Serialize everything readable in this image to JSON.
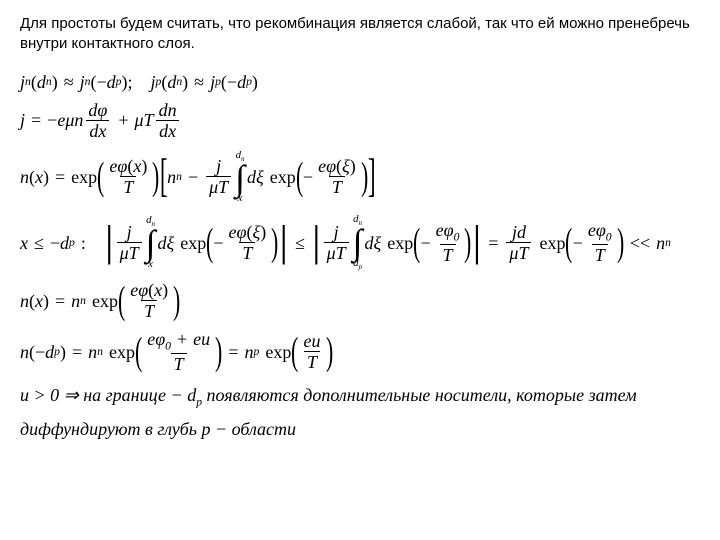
{
  "text": {
    "intro": "Для простоты будем считать, что рекомбинация является слабой, так что ей можно пренебречь внутри контактного слоя.",
    "cond1": "u > 0 ⇒ на границе − d",
    "cond1b": " появляются дополнительные носители, которые затем",
    "cond2": "диффундируют в глубь p − области"
  },
  "sym": {
    "jn": "j",
    "n": "n",
    "p": "p",
    "d": "d",
    "approx": "≈",
    "comma": ",",
    "j": "j",
    "eq": "=",
    "minus": "−",
    "plus": "+",
    "e": "e",
    "mu": "μ",
    "phi": "φ",
    "x": "x",
    "T": "T",
    "xi": "ξ",
    "exp": "exp",
    "le": "≤",
    "colon": ":",
    "zero": "0",
    "u": "u",
    "muT": "μT",
    "ll": "<<",
    "sc": ";"
  }
}
